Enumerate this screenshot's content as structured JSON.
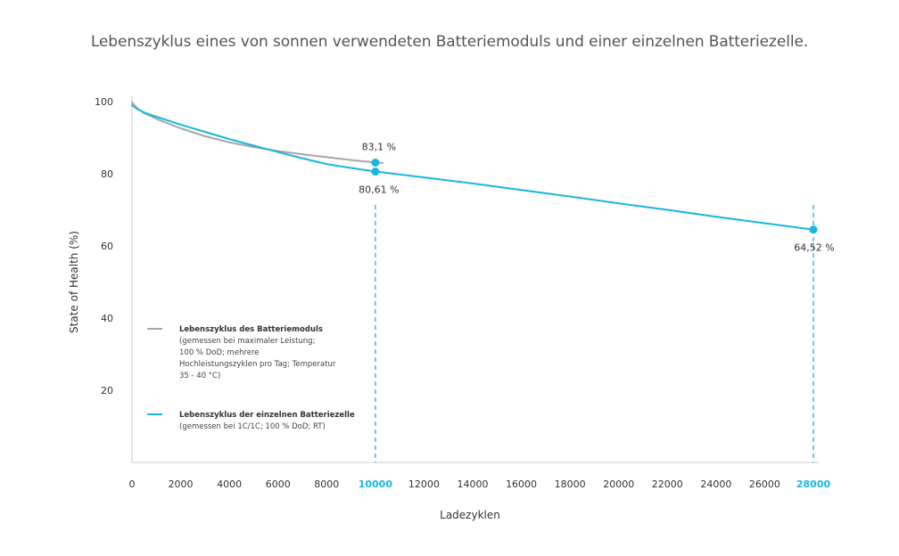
{
  "title": "Lebenszyklus eines von sonnen verwendeten Batteriemoduls und einer einzelnen Batteriezelle.",
  "colors": {
    "module": "#a7a7a7",
    "cell": "#19b6e0",
    "axis": "#cccccc",
    "highlight_tick": "#19b6e0"
  },
  "chart_data": {
    "type": "line",
    "title": "Lebenszyklus eines von sonnen verwendeten Batteriemoduls und einer einzelnen Batteriezelle.",
    "xlabel": "Ladezyklen",
    "ylabel": "State of Health (%)",
    "xlim": [
      0,
      28000
    ],
    "ylim": [
      0,
      100
    ],
    "x_ticks": [
      0,
      2000,
      4000,
      6000,
      8000,
      10000,
      12000,
      14000,
      16000,
      18000,
      20000,
      22000,
      24000,
      26000,
      28000
    ],
    "x_tick_labels": [
      "0",
      "2000",
      "4000",
      "6000",
      "8000",
      "10000",
      "12000",
      "14000",
      "16000",
      "18000",
      "20000",
      "22000",
      "24000",
      "26000",
      "28000"
    ],
    "highlighted_x_ticks": [
      10000,
      28000
    ],
    "y_ticks": [
      20,
      40,
      60,
      80,
      100
    ],
    "y_tick_labels": [
      "20",
      "40",
      "60",
      "80",
      "100"
    ],
    "grid": false,
    "legend_position": "lower-left",
    "series": [
      {
        "name": "Lebenszyklus des Batteriemoduls",
        "description": [
          "(gemessen bei maximaler Leistung;",
          "100 % DoD; mehrere",
          "Hochleistungszyklen pro Tag; Temperatur",
          "35 - 40 °C)"
        ],
        "color": "#a7a7a7",
        "x": [
          0,
          200,
          500,
          1000,
          2000,
          3000,
          4000,
          5000,
          6000,
          7000,
          8000,
          9000,
          10000,
          10300
        ],
        "y": [
          99.8,
          98.2,
          96.8,
          95.2,
          92.6,
          90.4,
          88.7,
          87.4,
          86.3,
          85.4,
          84.6,
          83.8,
          83.1,
          83.0
        ],
        "endpoint": {
          "x": 10000,
          "y": 83.1,
          "label": "83,1 %"
        }
      },
      {
        "name": "Lebenszyklus der einzelnen Batteriezelle",
        "description": [
          "(gemessen bei 1C/1C; 100 % DoD; RT)"
        ],
        "color": "#19b6e0",
        "x": [
          0,
          200,
          500,
          1000,
          2000,
          3000,
          4000,
          5000,
          6000,
          7000,
          8000,
          9000,
          10000,
          12000,
          14000,
          16000,
          18000,
          20000,
          22000,
          24000,
          26000,
          28000
        ],
        "y": [
          99.0,
          98.0,
          97.0,
          95.8,
          93.6,
          91.6,
          89.6,
          87.8,
          86.0,
          84.3,
          82.7,
          81.6,
          80.61,
          79.0,
          77.3,
          75.5,
          73.7,
          71.8,
          70.0,
          68.1,
          66.3,
          64.52
        ],
        "markers": [
          {
            "x": 10000,
            "y": 80.61,
            "label": "80,61 %"
          },
          {
            "x": 28000,
            "y": 64.52,
            "label": "64,52 %"
          }
        ]
      }
    ]
  }
}
